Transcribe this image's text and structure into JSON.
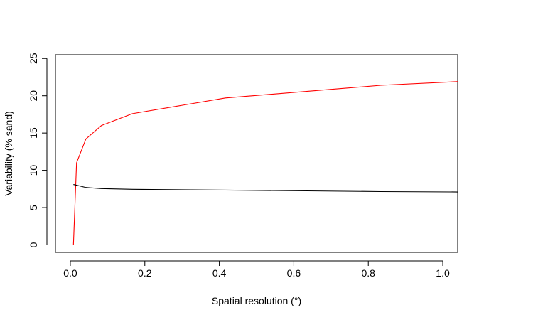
{
  "chart_data": {
    "type": "line",
    "title": "",
    "xlabel": "Spatial resolution (°)",
    "ylabel": "Variability (% sand)",
    "xlim": [
      -0.04,
      1.04
    ],
    "ylim": [
      -1,
      25.5
    ],
    "grid": false,
    "legend": "none",
    "x_ticks": [
      0.0,
      0.2,
      0.4,
      0.6,
      0.8,
      1.0
    ],
    "x_tick_labels": [
      "0.0",
      "0.2",
      "0.4",
      "0.6",
      "0.8",
      "1.0"
    ],
    "y_ticks": [
      0,
      5,
      10,
      15,
      20,
      25
    ],
    "y_tick_labels": [
      "0",
      "5",
      "10",
      "15",
      "20",
      "25"
    ],
    "series": [
      {
        "color": "#ff0000",
        "x": [
          0.0083,
          0.0167,
          0.0417,
          0.0833,
          0.1667,
          0.4167,
          0.8333,
          1.04
        ],
        "y": [
          0.0,
          11.0,
          14.2,
          16.0,
          17.6,
          19.7,
          21.4,
          21.9
        ]
      },
      {
        "color": "#000000",
        "x": [
          0.0083,
          0.0167,
          0.0417,
          0.0833,
          0.1667,
          0.4167,
          0.8333,
          1.04
        ],
        "y": [
          8.1,
          8.0,
          7.7,
          7.55,
          7.45,
          7.35,
          7.15,
          7.1
        ]
      }
    ]
  }
}
